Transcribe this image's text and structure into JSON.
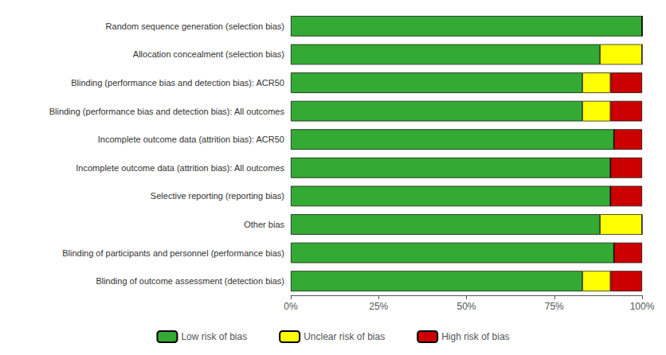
{
  "chart_data": {
    "type": "bar",
    "orientation": "horizontal",
    "stacked": true,
    "categories": [
      "Random sequence generation (selection bias)",
      "Allocation concealment (selection bias)",
      "Blinding (performance bias and detection bias): ACR50",
      "Blinding (performance bias and detection bias): All outcomes",
      "Incomplete outcome data (attrition bias): ACR50",
      "Incomplete outcome data (attrition bias): All outcomes",
      "Selective reporting (reporting bias)",
      "Other bias",
      "Blinding of participants and personnel (performance bias)",
      "Blinding of outcome assessment (detection bias)"
    ],
    "series": [
      {
        "name": "Low risk of bias",
        "color": "#33aa33",
        "values": [
          100,
          88,
          83,
          83,
          92,
          91,
          91,
          88,
          92,
          83
        ]
      },
      {
        "name": "Unclear risk of bias",
        "color": "#ffff00",
        "values": [
          0,
          12,
          8,
          8,
          0,
          0,
          0,
          12,
          0,
          8
        ]
      },
      {
        "name": "High risk of bias",
        "color": "#cc0000",
        "values": [
          0,
          0,
          9,
          9,
          8,
          9,
          9,
          0,
          8,
          9
        ]
      }
    ],
    "xlim": [
      0,
      100
    ],
    "xticks": [
      {
        "value": 0,
        "label": "0%"
      },
      {
        "value": 25,
        "label": "25%"
      },
      {
        "value": 50,
        "label": "50%"
      },
      {
        "value": 75,
        "label": "75%"
      },
      {
        "value": 100,
        "label": "100%"
      }
    ],
    "grid": false,
    "legend": "bottom"
  }
}
